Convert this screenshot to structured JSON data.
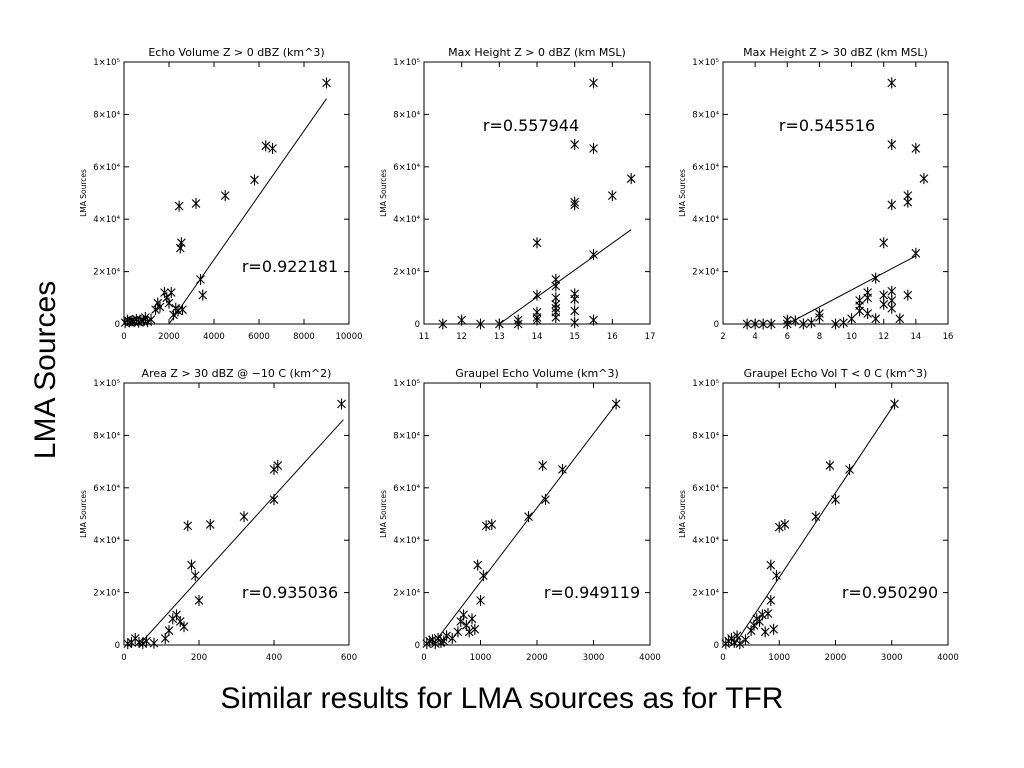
{
  "side_label": "LMA Sources",
  "caption": "Similar results for LMA sources as for TFR",
  "chart_data": [
    {
      "type": "scatter",
      "title": "Echo Volume Z > 0 dBZ (km^3)",
      "ylabel": "LMA Sources",
      "xlim": [
        0,
        10000
      ],
      "ylim": [
        0,
        100000
      ],
      "xticks": [
        0,
        2000,
        4000,
        6000,
        8000,
        10000
      ],
      "xtick_labels": [
        "0",
        "2000",
        "4000",
        "6000",
        "8000",
        "10000"
      ],
      "yticks": [
        0,
        20000,
        40000,
        60000,
        80000,
        100000
      ],
      "ytick_labels": [
        "0",
        "2×10⁴",
        "4×10⁴",
        "6×10⁴",
        "8×10⁴",
        "1×10⁵"
      ],
      "r_label": "r=0.922181",
      "fit": {
        "x": [
          2000,
          9000
        ],
        "y": [
          0,
          86000
        ]
      },
      "points": [
        [
          50,
          500
        ],
        [
          150,
          1500
        ],
        [
          250,
          800
        ],
        [
          350,
          1200
        ],
        [
          450,
          900
        ],
        [
          550,
          1800
        ],
        [
          650,
          700
        ],
        [
          750,
          1500
        ],
        [
          850,
          1100
        ],
        [
          950,
          2500
        ],
        [
          1050,
          900
        ],
        [
          1200,
          1700
        ],
        [
          1400,
          5500
        ],
        [
          1500,
          8000
        ],
        [
          1600,
          6500
        ],
        [
          1800,
          12000
        ],
        [
          1900,
          10000
        ],
        [
          2000,
          8000
        ],
        [
          2100,
          12000
        ],
        [
          2200,
          3500
        ],
        [
          2300,
          6000
        ],
        [
          2400,
          5000
        ],
        [
          2450,
          45000
        ],
        [
          2500,
          29000
        ],
        [
          2550,
          31000
        ],
        [
          2600,
          5500
        ],
        [
          3200,
          46000
        ],
        [
          3400,
          17000
        ],
        [
          3500,
          11000
        ],
        [
          4500,
          49000
        ],
        [
          5800,
          55000
        ],
        [
          6300,
          68000
        ],
        [
          6600,
          67000
        ],
        [
          9000,
          92000
        ]
      ]
    },
    {
      "type": "scatter",
      "title": "Max Height Z > 0 dBZ (km MSL)",
      "ylabel": "LMA Sources",
      "xlim": [
        11,
        17
      ],
      "ylim": [
        0,
        100000
      ],
      "xticks": [
        11,
        12,
        13,
        14,
        15,
        16,
        17
      ],
      "xtick_labels": [
        "11",
        "12",
        "13",
        "14",
        "15",
        "16",
        "17"
      ],
      "yticks": [
        0,
        20000,
        40000,
        60000,
        80000,
        100000
      ],
      "ytick_labels": [
        "0",
        "2×10⁴",
        "4×10⁴",
        "6×10⁴",
        "8×10⁴",
        "1×10⁵"
      ],
      "r_label": "r=0.557944",
      "fit": {
        "x": [
          13,
          16.5
        ],
        "y": [
          0,
          36000
        ]
      },
      "points": [
        [
          11.5,
          0
        ],
        [
          12,
          1500
        ],
        [
          12.5,
          0
        ],
        [
          13,
          0
        ],
        [
          13.5,
          0
        ],
        [
          13.5,
          1500
        ],
        [
          14,
          1500
        ],
        [
          14,
          2500
        ],
        [
          14,
          4500
        ],
        [
          14,
          11000
        ],
        [
          14,
          31000
        ],
        [
          14.5,
          2500
        ],
        [
          14.5,
          4500
        ],
        [
          14.5,
          6000
        ],
        [
          14.5,
          7500
        ],
        [
          14.5,
          10000
        ],
        [
          14.5,
          14500
        ],
        [
          14.5,
          17000
        ],
        [
          15,
          500
        ],
        [
          15,
          5000
        ],
        [
          15,
          9500
        ],
        [
          15,
          11500
        ],
        [
          15,
          45500
        ],
        [
          15,
          46500
        ],
        [
          15,
          68500
        ],
        [
          15.5,
          1500
        ],
        [
          15.5,
          26500
        ],
        [
          15.5,
          67000
        ],
        [
          15.5,
          92000
        ],
        [
          16,
          49000
        ],
        [
          16.5,
          55500
        ]
      ]
    },
    {
      "type": "scatter",
      "title": "Max Height Z > 30 dBZ (km MSL)",
      "ylabel": "LMA Sources",
      "xlim": [
        2,
        16
      ],
      "ylim": [
        0,
        100000
      ],
      "xticks": [
        2,
        4,
        6,
        8,
        10,
        12,
        14,
        16
      ],
      "xtick_labels": [
        "2",
        "4",
        "6",
        "8",
        "10",
        "12",
        "14",
        "16"
      ],
      "yticks": [
        0,
        20000,
        40000,
        60000,
        80000,
        100000
      ],
      "ytick_labels": [
        "0",
        "2×10⁴",
        "4×10⁴",
        "6×10⁴",
        "8×10⁴",
        "1×10⁵"
      ],
      "r_label": "r=0.545516",
      "fit": {
        "x": [
          6,
          14
        ],
        "y": [
          0,
          26000
        ]
      },
      "points": [
        [
          3.5,
          0
        ],
        [
          4,
          0
        ],
        [
          4.5,
          0
        ],
        [
          5,
          0
        ],
        [
          6,
          0
        ],
        [
          6,
          1500
        ],
        [
          6.5,
          1200
        ],
        [
          7,
          0
        ],
        [
          7.5,
          500
        ],
        [
          8,
          2500
        ],
        [
          8,
          4000
        ],
        [
          9,
          0
        ],
        [
          9.5,
          500
        ],
        [
          10,
          2000
        ],
        [
          10.5,
          5000
        ],
        [
          10.5,
          7000
        ],
        [
          10.5,
          9000
        ],
        [
          11,
          10000
        ],
        [
          11,
          12000
        ],
        [
          11,
          4000
        ],
        [
          11.5,
          2000
        ],
        [
          11.5,
          17500
        ],
        [
          12,
          7500
        ],
        [
          12,
          11000
        ],
        [
          12,
          31000
        ],
        [
          12.5,
          6000
        ],
        [
          12.5,
          9000
        ],
        [
          12.5,
          12500
        ],
        [
          12.5,
          45500
        ],
        [
          12.5,
          68500
        ],
        [
          12.5,
          92000
        ],
        [
          13,
          2000
        ],
        [
          13.5,
          11000
        ],
        [
          13.5,
          46500
        ],
        [
          13.5,
          49000
        ],
        [
          14,
          27000
        ],
        [
          14,
          67000
        ],
        [
          14.5,
          55500
        ]
      ]
    },
    {
      "type": "scatter",
      "title": "Area Z > 30 dBZ @ −10 C (km^2)",
      "ylabel": "LMA Sources",
      "xlim": [
        0,
        600
      ],
      "ylim": [
        0,
        100000
      ],
      "xticks": [
        0,
        200,
        400,
        600
      ],
      "xtick_labels": [
        "0",
        "200",
        "400",
        "600"
      ],
      "yticks": [
        0,
        20000,
        40000,
        60000,
        80000,
        100000
      ],
      "ytick_labels": [
        "0",
        "2×10⁴",
        "4×10⁴",
        "6×10⁴",
        "8×10⁴",
        "1×10⁵"
      ],
      "r_label": "r=0.935036",
      "fit": {
        "x": [
          40,
          585
        ],
        "y": [
          0,
          86000
        ]
      },
      "points": [
        [
          10,
          500
        ],
        [
          20,
          1000
        ],
        [
          30,
          2500
        ],
        [
          40,
          1000
        ],
        [
          50,
          500
        ],
        [
          60,
          1500
        ],
        [
          80,
          700
        ],
        [
          110,
          2500
        ],
        [
          120,
          5500
        ],
        [
          130,
          10000
        ],
        [
          140,
          11500
        ],
        [
          150,
          9000
        ],
        [
          160,
          7000
        ],
        [
          170,
          45500
        ],
        [
          180,
          30500
        ],
        [
          190,
          26500
        ],
        [
          200,
          17000
        ],
        [
          230,
          46000
        ],
        [
          320,
          49000
        ],
        [
          400,
          55500
        ],
        [
          400,
          67000
        ],
        [
          410,
          68500
        ],
        [
          580,
          92000
        ]
      ]
    },
    {
      "type": "scatter",
      "title": "Graupel Echo Volume (km^3)",
      "ylabel": "LMA Sources",
      "xlim": [
        0,
        4000
      ],
      "ylim": [
        0,
        100000
      ],
      "xticks": [
        0,
        1000,
        2000,
        3000,
        4000
      ],
      "xtick_labels": [
        "0",
        "1000",
        "2000",
        "3000",
        "4000"
      ],
      "yticks": [
        0,
        20000,
        40000,
        60000,
        80000,
        100000
      ],
      "ytick_labels": [
        "0",
        "2×10⁴",
        "4×10⁴",
        "6×10⁴",
        "8×10⁴",
        "1×10⁵"
      ],
      "r_label": "r=0.949119",
      "fit": {
        "x": [
          150,
          3400
        ],
        "y": [
          0,
          92000
        ]
      },
      "points": [
        [
          50,
          500
        ],
        [
          100,
          1500
        ],
        [
          150,
          2000
        ],
        [
          200,
          500
        ],
        [
          250,
          2500
        ],
        [
          300,
          1000
        ],
        [
          350,
          1500
        ],
        [
          400,
          3500
        ],
        [
          500,
          2500
        ],
        [
          600,
          5000
        ],
        [
          650,
          9000
        ],
        [
          700,
          11500
        ],
        [
          750,
          7500
        ],
        [
          800,
          5000
        ],
        [
          850,
          10000
        ],
        [
          900,
          6000
        ],
        [
          950,
          30500
        ],
        [
          1000,
          17000
        ],
        [
          1050,
          26500
        ],
        [
          1100,
          45500
        ],
        [
          1200,
          46000
        ],
        [
          1850,
          49000
        ],
        [
          2100,
          68500
        ],
        [
          2150,
          55500
        ],
        [
          2450,
          67000
        ],
        [
          3400,
          92000
        ]
      ]
    },
    {
      "type": "scatter",
      "title": "Graupel Echo Vol T < 0 C (km^3)",
      "ylabel": "LMA Sources",
      "xlim": [
        0,
        4000
      ],
      "ylim": [
        0,
        100000
      ],
      "xticks": [
        0,
        1000,
        2000,
        3000,
        4000
      ],
      "xtick_labels": [
        "0",
        "1000",
        "2000",
        "3000",
        "4000"
      ],
      "yticks": [
        0,
        20000,
        40000,
        60000,
        80000,
        100000
      ],
      "ytick_labels": [
        "0",
        "2×10⁴",
        "4×10⁴",
        "6×10⁴",
        "8×10⁴",
        "1×10⁵"
      ],
      "r_label": "r=0.950290",
      "fit": {
        "x": [
          200,
          3050
        ],
        "y": [
          0,
          92000
        ]
      },
      "points": [
        [
          50,
          500
        ],
        [
          100,
          1500
        ],
        [
          150,
          2500
        ],
        [
          200,
          1000
        ],
        [
          250,
          3500
        ],
        [
          300,
          500
        ],
        [
          400,
          2000
        ],
        [
          500,
          5500
        ],
        [
          550,
          7500
        ],
        [
          600,
          10000
        ],
        [
          650,
          9000
        ],
        [
          700,
          11500
        ],
        [
          750,
          5000
        ],
        [
          800,
          12000
        ],
        [
          850,
          17000
        ],
        [
          850,
          30500
        ],
        [
          900,
          6000
        ],
        [
          950,
          26500
        ],
        [
          1000,
          45000
        ],
        [
          1100,
          46000
        ],
        [
          1650,
          49000
        ],
        [
          1900,
          68500
        ],
        [
          2000,
          55500
        ],
        [
          2250,
          67000
        ],
        [
          3050,
          92000
        ]
      ]
    }
  ]
}
